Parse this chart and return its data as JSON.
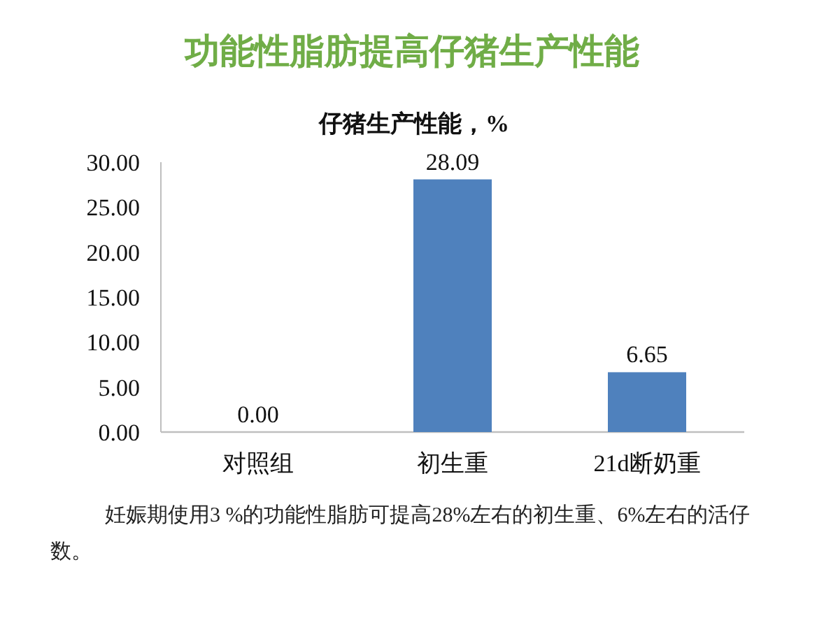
{
  "chart_data": {
    "type": "bar",
    "title": "功能性脂肪提高仔猪生产性能",
    "subtitle": "仔猪生产性能，%",
    "categories": [
      "对照组",
      "初生重",
      "21d断奶重"
    ],
    "values": [
      0,
      28.09,
      6.65
    ],
    "color": "#4f81bd",
    "value_labels": [
      "0.00",
      "28.09",
      "6.65"
    ],
    "ylim": [
      0,
      30
    ],
    "yticks": [
      {
        "value": 0,
        "label": "0.00"
      },
      {
        "value": 5,
        "label": "5.00"
      },
      {
        "value": 10,
        "label": "10.00"
      },
      {
        "value": 15,
        "label": "15.00"
      },
      {
        "value": 20,
        "label": "20.00"
      },
      {
        "value": 25,
        "label": "25.00"
      },
      {
        "value": 30,
        "label": "30.00"
      }
    ],
    "annotations": [
      "妊娠期使用3 %的功能性脂肪可提高28%左右的初生重、6%左右的活仔数。"
    ]
  }
}
